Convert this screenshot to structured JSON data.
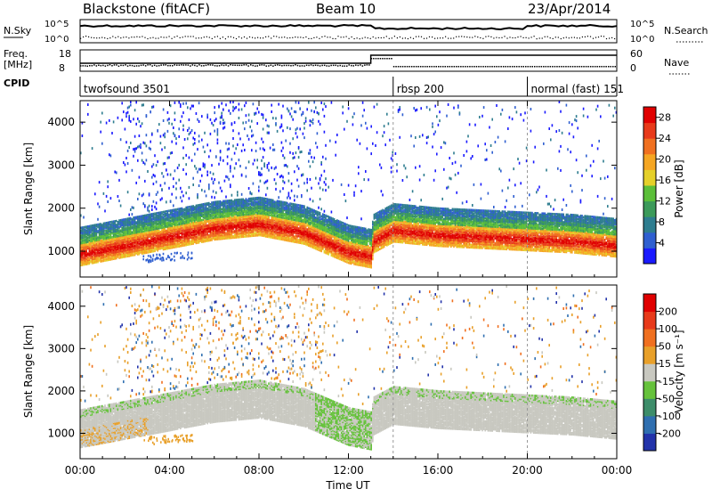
{
  "header": {
    "title": "Blackstone (fitACF)",
    "beam": "Beam 10",
    "date": "23/Apr/2014"
  },
  "top_panels": {
    "nsky_label": "N.Sky",
    "nsky_ticks": [
      "10^5",
      "10^0"
    ],
    "nsearch_label": "N.Search",
    "nsearch_ticks": [
      "10^5",
      "10^0"
    ],
    "freq_label_1": "Freq.",
    "freq_label_2": "[MHz]",
    "freq_ticks": [
      "18",
      "8"
    ],
    "nave_label": "Nave",
    "nave_ticks": [
      "60",
      "0"
    ],
    "cpid_label": "CPID",
    "cpid_segments": [
      {
        "label": "twofsound 3501",
        "start_hour": 0
      },
      {
        "label": "rbsp 200",
        "start_hour": 14
      },
      {
        "label": "normal (fast) 151",
        "start_hour": 20
      }
    ]
  },
  "x_axis": {
    "label": "Time UT",
    "ticks": [
      "00:00",
      "04:00",
      "08:00",
      "12:00",
      "16:00",
      "20:00",
      "00:00"
    ],
    "tick_hours": [
      0,
      4,
      8,
      12,
      16,
      20,
      24
    ]
  },
  "chart_data": [
    {
      "type": "heatmap",
      "name": "power",
      "ylabel": "Slant Range [km]",
      "yticks": [
        "1000",
        "2000",
        "3000",
        "4000"
      ],
      "ylim": [
        400,
        4500
      ],
      "xlim_hours": [
        0,
        24
      ],
      "colorbar": {
        "label": "Power [dB]",
        "ticks": [
          "4",
          "8",
          "12",
          "16",
          "20",
          "24",
          "28"
        ],
        "range": [
          0,
          30
        ],
        "colors": [
          "#1a1aff",
          "#2f5fd0",
          "#2e7d8f",
          "#3c9a5a",
          "#5cbf3a",
          "#e5d02a",
          "#f5a623",
          "#f07020",
          "#e83a1a",
          "#e00000"
        ]
      },
      "main_band": {
        "hours": [
          0,
          2,
          4,
          6,
          8,
          10,
          12,
          13,
          13.1,
          14,
          16,
          18,
          20,
          22,
          24
        ],
        "core_km": [
          950,
          1150,
          1350,
          1550,
          1650,
          1450,
          1000,
          900,
          1250,
          1500,
          1400,
          1350,
          1300,
          1250,
          1150
        ]
      }
    },
    {
      "type": "heatmap",
      "name": "velocity",
      "ylabel": "Slant Range [km]",
      "yticks": [
        "1000",
        "2000",
        "3000",
        "4000"
      ],
      "ylim": [
        400,
        4500
      ],
      "xlim_hours": [
        0,
        24
      ],
      "colorbar": {
        "label": "Velocity [m s⁻¹]",
        "ticks": [
          "200",
          "100",
          "50",
          "15",
          "-15",
          "-50",
          "-100",
          "-200"
        ],
        "colors": [
          "#2233aa",
          "#2f6fb0",
          "#3d8d6a",
          "#66c23c",
          "#c8c8c0",
          "#e8a02a",
          "#f07020",
          "#e83a1a",
          "#e00000"
        ]
      }
    }
  ]
}
